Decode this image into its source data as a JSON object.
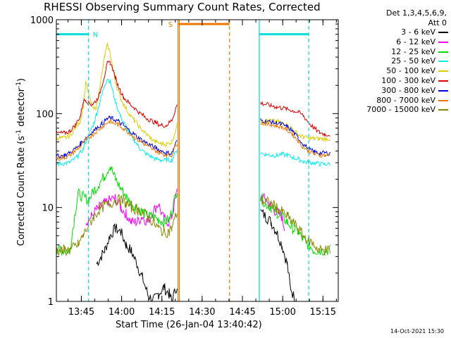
{
  "title": "RHESSI Observing Summary Count Rates, Corrected",
  "xlabel": "Start Time (26-Jan-04 13:40:42)",
  "ylabel_parts": [
    "Corrected Count Rate (s",
    "-1",
    " detector",
    "-1",
    ")"
  ],
  "timestamp": "14-Oct-2021 15:30",
  "legend_header": [
    "Det 1,3,4,5,6,9,",
    "Att 0"
  ],
  "chart_data": {
    "type": "line",
    "yscale": "log",
    "xlim_minutes": [
      -5.0,
      100.0
    ],
    "ylim": [
      1,
      1000
    ],
    "x_ticks": [
      "13:45",
      "14:00",
      "14:15",
      "14:30",
      "14:45",
      "15:00",
      "15:15"
    ],
    "y_ticks": [
      "1",
      "10",
      "100",
      "1000"
    ],
    "series": [
      {
        "name": "3 - 6 keV",
        "color": "#000000",
        "x": [
          -5,
          8,
          10,
          13,
          15,
          17,
          19,
          21,
          23,
          25,
          27,
          29,
          31,
          33,
          35,
          37,
          38,
          40,
          40.3,
          70.6,
          71,
          73,
          75,
          77,
          79,
          81,
          82,
          84
        ],
        "y": [
          null,
          null,
          2.5,
          3.5,
          5,
          6,
          5.5,
          4,
          3.4,
          2.5,
          1.8,
          1.2,
          1.0,
          1.2,
          1.4,
          1.2,
          1.0,
          1.5,
          null,
          null,
          9,
          8,
          7,
          5.5,
          4,
          2.5,
          1.5,
          1.0
        ]
      },
      {
        "name": "6 - 12 keV",
        "color": "#ff00ff",
        "x": [
          -5,
          4,
          6,
          8,
          10,
          12,
          13,
          15,
          17,
          19,
          21,
          23,
          25,
          27,
          29,
          31,
          33,
          35,
          37,
          38,
          40,
          40.3,
          70.6,
          71,
          73,
          75,
          77,
          79,
          80,
          82
        ],
        "y": [
          null,
          null,
          7,
          8,
          9.5,
          10.5,
          11,
          12,
          12.5,
          10,
          8.5,
          7,
          7,
          8,
          7,
          9,
          11,
          7.5,
          7,
          8,
          15,
          null,
          null,
          13,
          12,
          10,
          9,
          8,
          6,
          null
        ]
      },
      {
        "name": "12 - 25 keV",
        "color": "#00dd00",
        "x": [
          -5,
          -3,
          0,
          3,
          5,
          7,
          9,
          11,
          13,
          15,
          17,
          19,
          21,
          23,
          25,
          27,
          29,
          31,
          33,
          35,
          37,
          38,
          40,
          40.3,
          70.6,
          71,
          73,
          75,
          77,
          79,
          81,
          83,
          85,
          87,
          89,
          91,
          93,
          95,
          97
        ],
        "y": [
          3.5,
          3.5,
          3.5,
          14,
          13,
          12,
          15,
          18,
          22,
          28,
          20,
          16,
          13,
          11,
          10,
          9,
          8,
          8,
          7.5,
          7,
          7.5,
          9,
          16,
          null,
          null,
          13,
          11,
          10,
          9,
          8,
          7,
          6,
          5.5,
          4.5,
          4,
          3.5,
          3.5,
          3.5,
          3.5
        ]
      },
      {
        "name": "25 - 50 keV",
        "color": "#00eeee",
        "x": [
          -5,
          0,
          3,
          5,
          6,
          7,
          8,
          9,
          10,
          11,
          12,
          13,
          14,
          15,
          16,
          17,
          18,
          19,
          20,
          21,
          22,
          24,
          26,
          28,
          30,
          32,
          34,
          36,
          38,
          40,
          40.3,
          70.6,
          71,
          73,
          75,
          77,
          79,
          81,
          83,
          85,
          87,
          89,
          91,
          93,
          95,
          97
        ],
        "y": [
          29,
          30,
          35,
          42,
          50,
          58,
          68,
          80,
          100,
          125,
          160,
          205,
          235,
          220,
          175,
          135,
          110,
          92,
          82,
          72,
          63,
          52,
          43,
          38,
          35,
          33,
          32,
          32,
          32,
          42,
          null,
          null,
          38,
          37,
          36,
          36,
          37,
          36,
          34,
          33,
          31,
          30,
          30,
          29,
          29,
          29
        ]
      },
      {
        "name": "50 - 100 keV",
        "color": "#ddcc00",
        "x": [
          -5,
          -2,
          0,
          2,
          4,
          5,
          6,
          7,
          8,
          9,
          10,
          11,
          12,
          13,
          14,
          15,
          16,
          17,
          18,
          19,
          20,
          22,
          24,
          26,
          28,
          30,
          32,
          34,
          36,
          38,
          40,
          40.3,
          70.6,
          71,
          73,
          75,
          77,
          79,
          81,
          83,
          85,
          87,
          89,
          91,
          93,
          95,
          97
        ],
        "y": [
          55,
          55,
          58,
          70,
          85,
          120,
          220,
          160,
          130,
          110,
          120,
          180,
          270,
          410,
          540,
          450,
          300,
          220,
          175,
          145,
          125,
          100,
          85,
          72,
          63,
          55,
          50,
          48,
          47,
          50,
          75,
          null,
          null,
          85,
          84,
          83,
          82,
          80,
          76,
          68,
          60,
          56,
          55,
          54,
          54,
          54,
          54
        ]
      },
      {
        "name": "100 - 300 keV",
        "color": "#dd0000",
        "x": [
          -5,
          -2,
          0,
          2,
          4,
          5,
          6,
          7,
          8,
          9,
          10,
          11,
          12,
          13,
          14,
          15,
          16,
          17,
          18,
          19,
          20,
          22,
          24,
          26,
          28,
          30,
          32,
          34,
          36,
          38,
          40,
          40.3,
          70.6,
          71,
          73,
          75,
          77,
          79,
          81,
          83,
          85,
          87,
          89,
          91,
          93,
          95,
          97
        ],
        "y": [
          62,
          62,
          65,
          75,
          95,
          135,
          140,
          130,
          125,
          130,
          140,
          160,
          200,
          260,
          340,
          350,
          300,
          240,
          200,
          170,
          150,
          130,
          115,
          102,
          92,
          85,
          80,
          75,
          75,
          85,
          125,
          null,
          null,
          130,
          125,
          122,
          118,
          115,
          112,
          108,
          104,
          95,
          80,
          70,
          63,
          60,
          60
        ]
      },
      {
        "name": "300 - 800 keV",
        "color": "#0000dd",
        "x": [
          -5,
          -2,
          0,
          2,
          4,
          6,
          8,
          10,
          12,
          14,
          15,
          16,
          18,
          20,
          22,
          24,
          26,
          28,
          30,
          32,
          34,
          36,
          38,
          40,
          40.3,
          70.6,
          71,
          73,
          75,
          77,
          79,
          81,
          83,
          85,
          87,
          89,
          91,
          93,
          95,
          97
        ],
        "y": [
          35,
          36,
          38,
          42,
          48,
          55,
          62,
          70,
          78,
          88,
          90,
          88,
          83,
          75,
          67,
          60,
          54,
          50,
          46,
          43,
          40,
          38,
          38,
          52,
          null,
          null,
          85,
          83,
          81,
          79,
          77,
          72,
          65,
          55,
          47,
          42,
          39,
          38,
          38,
          38
        ]
      },
      {
        "name": "800 - 7000 keV",
        "color": "#ee7700",
        "x": [
          -5,
          -2,
          0,
          2,
          4,
          6,
          8,
          10,
          12,
          14,
          15,
          16,
          18,
          20,
          22,
          24,
          26,
          28,
          30,
          32,
          34,
          36,
          38,
          40,
          40.3,
          70.6,
          71,
          73,
          75,
          77,
          79,
          81,
          83,
          85,
          87,
          89,
          91,
          93,
          95,
          97
        ],
        "y": [
          33,
          34,
          36,
          40,
          45,
          52,
          58,
          65,
          72,
          80,
          82,
          80,
          76,
          70,
          63,
          56,
          51,
          47,
          43,
          40,
          38,
          36,
          36,
          50,
          null,
          null,
          80,
          78,
          76,
          74,
          72,
          67,
          60,
          51,
          44,
          40,
          37,
          36,
          36,
          36
        ]
      },
      {
        "name": "7000 - 15000 keV",
        "color": "#888800",
        "x": [
          -5,
          -2,
          0,
          3,
          5,
          7,
          9,
          11,
          13,
          15,
          17,
          19,
          21,
          23,
          25,
          27,
          29,
          31,
          33,
          35,
          37,
          38,
          40,
          40.3,
          70.6,
          71,
          73,
          75,
          77,
          79,
          81,
          83,
          85,
          87,
          89,
          91,
          93,
          95,
          97
        ],
        "y": [
          3.5,
          3.5,
          3.5,
          4,
          5,
          6.5,
          8,
          9.5,
          10.5,
          11,
          12,
          12,
          11,
          10,
          9.5,
          9,
          8,
          7,
          6,
          5.5,
          5.5,
          6,
          9,
          null,
          null,
          12,
          11.5,
          11,
          10,
          9,
          8,
          7,
          6,
          5,
          4.5,
          4,
          3.5,
          3.5,
          3.5
        ]
      }
    ],
    "markers": [
      {
        "label": "N",
        "color": "#00dddd",
        "bar_from": -5,
        "bar_to": 7,
        "bar_y": 700,
        "line_x": 7,
        "style": "dashed"
      },
      {
        "label": "S",
        "color": "#ee7700",
        "bar_from": 40.3,
        "bar_to": 59.5,
        "bar_y": 900,
        "line_x": 40.3,
        "style": "solid"
      },
      {
        "label": "",
        "color": "#ee7700",
        "line_x": 59.5,
        "style": "dashed"
      },
      {
        "label": "",
        "color": "#00dddd",
        "bar_from": 70.6,
        "bar_to": 89,
        "bar_y": 700,
        "line_x": 70.6,
        "style": "solid"
      },
      {
        "label": "",
        "color": "#00dddd",
        "line_x": 89,
        "style": "dashed"
      },
      {
        "label": "",
        "color": "#ee7700",
        "line_x": 40.8,
        "style": "solid"
      }
    ]
  }
}
